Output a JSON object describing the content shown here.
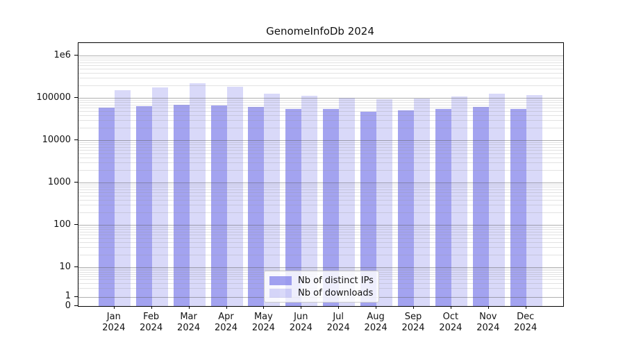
{
  "title": "GenomeInfoDb 2024",
  "chart_data": {
    "type": "bar",
    "title": "GenomeInfoDb 2024",
    "categories": [
      "Jan 2024",
      "Feb 2024",
      "Mar 2024",
      "Apr 2024",
      "May 2024",
      "Jun 2024",
      "Jul 2024",
      "Aug 2024",
      "Sep 2024",
      "Oct 2024",
      "Nov 2024",
      "Dec 2024"
    ],
    "x_tick_months": [
      "Jan",
      "Feb",
      "Mar",
      "Apr",
      "May",
      "Jun",
      "Jul",
      "Aug",
      "Sep",
      "Oct",
      "Nov",
      "Dec"
    ],
    "x_tick_year": "2024",
    "series": [
      {
        "name": "Nb of distinct IPs",
        "color": "rgba(102,102,230,0.60)",
        "color_hex_on_white": "#a4a4ee",
        "values": [
          60000,
          64000,
          70000,
          66000,
          63000,
          54500,
          54500,
          48000,
          52000,
          54500,
          61000,
          55000
        ]
      },
      {
        "name": "Nb of downloads",
        "color": "rgba(102,102,230,0.25)",
        "color_hex_on_white": "#d8d8f8",
        "values": [
          155000,
          180000,
          228000,
          185000,
          129000,
          113000,
          103000,
          93000,
          96000,
          109000,
          125000,
          116000
        ]
      }
    ],
    "yscale": "symlog",
    "ylabel": "",
    "xlabel": "",
    "ytick_values": [
      0,
      1,
      10,
      100,
      1000,
      10000,
      100000,
      1000000
    ],
    "ytick_labels": [
      "0",
      "1",
      "10",
      "100",
      "1000",
      "10000",
      "100000",
      "1e6"
    ],
    "ylim": [
      0,
      2000000
    ],
    "grid": "horizontal major and minor, drawn over translucent bars",
    "legend_position": "lower center inside plot",
    "accent_color": "#6666e6"
  }
}
